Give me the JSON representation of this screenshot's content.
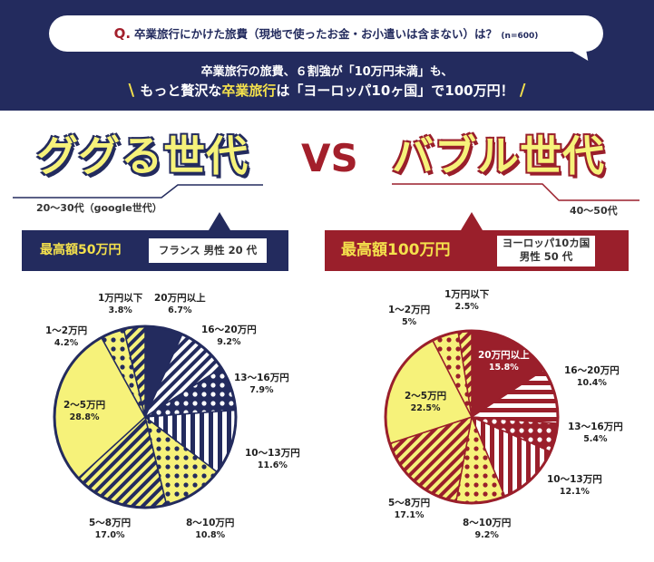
{
  "header": {
    "q_mark": "Q.",
    "question": "卒業旅行にかけた旅費（現地で使ったお金・お小遣いは含まない）は？",
    "sample": "(n=600)",
    "line1": "卒業旅行の旅費、６割強が「10万円未満」も、",
    "line2_a": "もっと贅沢な",
    "line2_b": "卒業旅行",
    "line2_c": "は「ヨーロッパ10ヶ国」で100万円！"
  },
  "left": {
    "title": "ググる世代",
    "age": "20～30代（google世代）",
    "max_label": "最高額50万円",
    "max_detail": "フランス 男性 20 代"
  },
  "vs": "VS",
  "right": {
    "title": "バブル世代",
    "age": "40～50代",
    "max_label": "最高額100万円",
    "max_detail_1": "ヨーロッパ10カ国",
    "max_detail_2": "男性 50 代"
  },
  "colors": {
    "navy": "#232b5e",
    "red": "#9a1f2b",
    "yellow": "#f6f27a",
    "white": "#ffffff"
  },
  "chart_data": [
    {
      "type": "pie",
      "title": "ググる世代",
      "categories": [
        "20万円以上",
        "16～20万円",
        "13～16万円",
        "10～13万円",
        "8～10万円",
        "5～8万円",
        "2～5万円",
        "1～2万円",
        "1万円以下"
      ],
      "values": [
        6.7,
        9.2,
        7.9,
        11.6,
        10.8,
        17.0,
        28.8,
        4.2,
        3.8
      ],
      "labels": [
        "6.7%",
        "9.2%",
        "7.9%",
        "11.6%",
        "10.8%",
        "17.0%",
        "28.8%",
        "4.2%",
        "3.8%"
      ],
      "patterns": [
        "solid",
        "diagonal",
        "dots",
        "vstripes",
        "dots",
        "diagonal",
        "solid",
        "dots",
        "diagonal"
      ]
    },
    {
      "type": "pie",
      "title": "バブル世代",
      "categories": [
        "20万円以上",
        "16～20万円",
        "13～16万円",
        "10～13万円",
        "8～10万円",
        "5～8万円",
        "2～5万円",
        "1～2万円",
        "1万円以下"
      ],
      "values": [
        15.8,
        10.4,
        5.4,
        12.1,
        9.2,
        17.1,
        22.5,
        5,
        2.5
      ],
      "labels": [
        "15.8%",
        "10.4%",
        "5.4%",
        "12.1%",
        "9.2%",
        "17.1%",
        "22.5%",
        "5%",
        "2.5%"
      ],
      "patterns": [
        "solid",
        "hstripes",
        "dots",
        "vstripes",
        "dots",
        "diagonal",
        "solid",
        "dots",
        "diagonal"
      ]
    }
  ]
}
